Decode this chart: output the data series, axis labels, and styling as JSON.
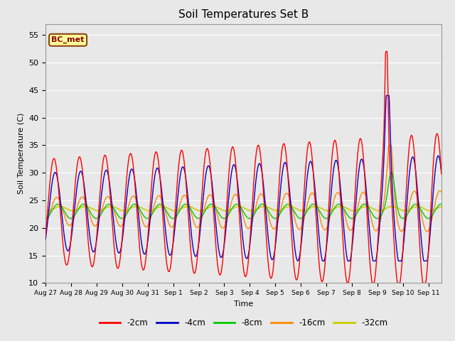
{
  "title": "Soil Temperatures Set B",
  "xlabel": "Time",
  "ylabel": "Soil Temperature (C)",
  "ylim": [
    10,
    57
  ],
  "yticks": [
    10,
    15,
    20,
    25,
    30,
    35,
    40,
    45,
    50,
    55
  ],
  "annotation_text": "BC_met",
  "colors": {
    "-2cm": "#FF0000",
    "-4cm": "#0000CC",
    "-8cm": "#00CC00",
    "-16cm": "#FF8800",
    "-32cm": "#CCCC00"
  },
  "legend_labels": [
    "-2cm",
    "-4cm",
    "-8cm",
    "-16cm",
    "-32cm"
  ],
  "xtick_labels": [
    "Aug 27",
    "Aug 28",
    "Aug 29",
    "Aug 30",
    "Aug 31",
    "Sep 1",
    "Sep 2",
    "Sep 3",
    "Sep 4",
    "Sep 5",
    "Sep 6",
    "Sep 7",
    "Sep 8",
    "Sep 9",
    "Sep 10",
    "Sep 11"
  ],
  "background_color": "#E8E8E8"
}
